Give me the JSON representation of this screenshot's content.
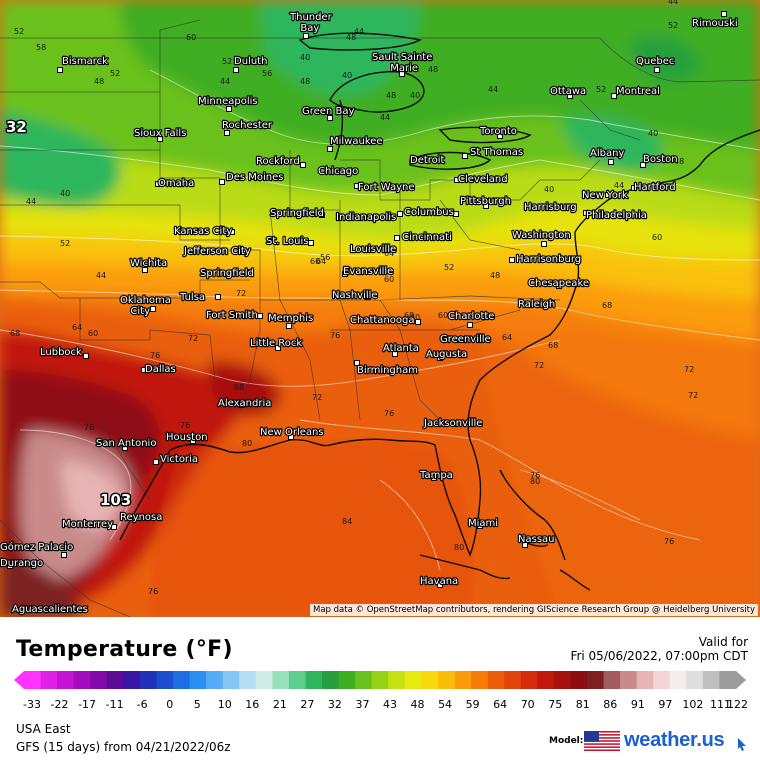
{
  "legend": {
    "title": "Temperature (°F)",
    "valid_label": "Valid for",
    "valid_time": "Fri 05/06/2022, 07:00pm CDT",
    "ticks": [
      "-33",
      "-22",
      "-17",
      "-11",
      "-6",
      "0",
      "5",
      "10",
      "16",
      "21",
      "27",
      "32",
      "37",
      "43",
      "48",
      "54",
      "59",
      "64",
      "70",
      "75",
      "81",
      "86",
      "91",
      "97",
      "102",
      "111",
      "122"
    ],
    "colors": [
      "#ff33ff",
      "#e21fe8",
      "#c413d2",
      "#a40dbd",
      "#830aa8",
      "#5d0a99",
      "#3a16a6",
      "#2030b8",
      "#1e4ecf",
      "#1d6ee2",
      "#2a8ff0",
      "#56acf5",
      "#85c6f6",
      "#b7def7",
      "#cfeee6",
      "#98e1bb",
      "#5ece8c",
      "#2fb65b",
      "#26a03e",
      "#3fae24",
      "#6bc11c",
      "#97d216",
      "#c4e112",
      "#e7ea0f",
      "#f8da0c",
      "#fcbd0a",
      "#fb9d08",
      "#f57d07",
      "#ec5f08",
      "#e3440a",
      "#d52c0b",
      "#c1170d",
      "#a8100f",
      "#8f0d12",
      "#7d2024",
      "#a45b5c",
      "#c98a8a",
      "#e6b4b4",
      "#f4d5d5",
      "#f7ecec",
      "#dedede",
      "#bfbfbf",
      "#9c9c9c"
    ]
  },
  "region": "USA East",
  "model_run": "GFS (15 days) from  04/21/2022/06z",
  "model_label": "Model:",
  "brand": {
    "name": "weather.us",
    "flag_icon": "us-flag-icon",
    "icon": "arrow-logo-icon"
  },
  "attribution": "Map data © OpenStreetMap contributors, rendering GIScience Research Group @ Heidelberg University",
  "cities": [
    {
      "name": "Thunder Bay"
    },
    {
      "name": "Rimouski"
    },
    {
      "name": "Bismarck"
    },
    {
      "name": "Duluth"
    },
    {
      "name": "Sault Sainte Marie"
    },
    {
      "name": "Quebec"
    },
    {
      "name": "Ottawa"
    },
    {
      "name": "Montreal"
    },
    {
      "name": "Minneapolis"
    },
    {
      "name": "Green Bay"
    },
    {
      "name": "Rochester"
    },
    {
      "name": "Sioux Falls"
    },
    {
      "name": "Milwaukee"
    },
    {
      "name": "Toronto"
    },
    {
      "name": "Albany"
    },
    {
      "name": "Boston"
    },
    {
      "name": "St Thomas"
    },
    {
      "name": "Rockford"
    },
    {
      "name": "Detroit"
    },
    {
      "name": "Chicago"
    },
    {
      "name": "Des Moines"
    },
    {
      "name": "Cleveland"
    },
    {
      "name": "Omaha"
    },
    {
      "name": "Fort Wayne"
    },
    {
      "name": "New York"
    },
    {
      "name": "Hartford"
    },
    {
      "name": "Pittsburgh"
    },
    {
      "name": "Harrisburg"
    },
    {
      "name": "Springfield"
    },
    {
      "name": "Indianapolis"
    },
    {
      "name": "Columbus"
    },
    {
      "name": "Philadelphia"
    },
    {
      "name": "Kansas City"
    },
    {
      "name": "St. Louis"
    },
    {
      "name": "Cincinnati"
    },
    {
      "name": "Washington"
    },
    {
      "name": "Jefferson City"
    },
    {
      "name": "Louisville"
    },
    {
      "name": "Harrisonburg"
    },
    {
      "name": "Wichita"
    },
    {
      "name": "Springfield"
    },
    {
      "name": "Evansville"
    },
    {
      "name": "Chesapeake"
    },
    {
      "name": "Oklahoma City"
    },
    {
      "name": "Tulsa"
    },
    {
      "name": "Nashville"
    },
    {
      "name": "Raleigh"
    },
    {
      "name": "Fort Smith"
    },
    {
      "name": "Memphis"
    },
    {
      "name": "Chattanooga"
    },
    {
      "name": "Charlotte"
    },
    {
      "name": "Greenville"
    },
    {
      "name": "Lubbock"
    },
    {
      "name": "Little Rock"
    },
    {
      "name": "Atlanta"
    },
    {
      "name": "Augusta"
    },
    {
      "name": "Dallas"
    },
    {
      "name": "Birmingham"
    },
    {
      "name": "Alexandria"
    },
    {
      "name": "Jacksonville"
    },
    {
      "name": "San Antonio"
    },
    {
      "name": "Houston"
    },
    {
      "name": "New Orleans"
    },
    {
      "name": "Victoria"
    },
    {
      "name": "Tampa"
    },
    {
      "name": "Reynosa"
    },
    {
      "name": "Monterrey"
    },
    {
      "name": "Miami"
    },
    {
      "name": "Nassau"
    },
    {
      "name": "Gómez Palacio"
    },
    {
      "name": "Durango"
    },
    {
      "name": "Havana"
    },
    {
      "name": "Aguascalientes"
    }
  ],
  "isotherm_labels": [
    "52",
    "58",
    "60",
    "52",
    "48",
    "52",
    "56",
    "48",
    "44",
    "40",
    "48",
    "44",
    "40",
    "48",
    "44",
    "40",
    "48",
    "44",
    "52",
    "52",
    "44",
    "40",
    "48",
    "40",
    "44",
    "52",
    "44",
    "52",
    "60",
    "64",
    "68",
    "72",
    "76",
    "80",
    "68",
    "76",
    "72",
    "64",
    "72",
    "76",
    "76",
    "68",
    "72",
    "76",
    "60",
    "64",
    "68",
    "72",
    "56",
    "60",
    "64",
    "60",
    "68",
    "76",
    "80",
    "84",
    "76",
    "80",
    "76",
    "80",
    "72",
    "60",
    "52",
    "48",
    "44",
    "40"
  ],
  "extremes": [
    "32",
    "103"
  ]
}
